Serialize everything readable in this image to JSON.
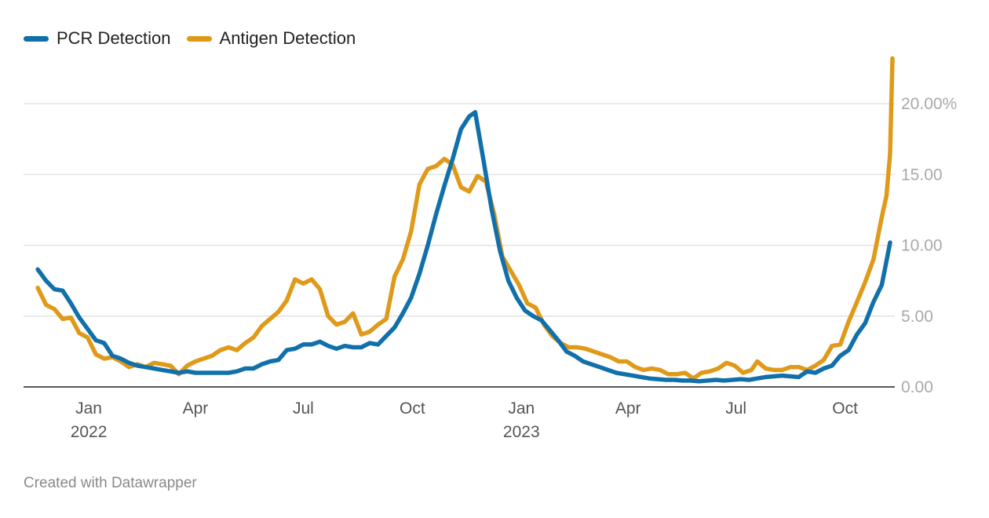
{
  "chart_data": {
    "type": "line",
    "title": "",
    "xlabel": "",
    "ylabel": "",
    "ylim": [
      0,
      24
    ],
    "y_ticks": [
      {
        "value": 0,
        "label": "0.00"
      },
      {
        "value": 5,
        "label": "5.00"
      },
      {
        "value": 10,
        "label": "10.00"
      },
      {
        "value": 15,
        "label": "15.00"
      },
      {
        "value": 20,
        "label": "20.00%"
      }
    ],
    "x_range": [
      "2021-11-07",
      "2023-11-12"
    ],
    "x_ticks": [
      {
        "date": "2022-01-01",
        "label": "Jan",
        "year": "2022"
      },
      {
        "date": "2022-04-01",
        "label": "Apr",
        "year": ""
      },
      {
        "date": "2022-07-01",
        "label": "Jul",
        "year": ""
      },
      {
        "date": "2022-10-01",
        "label": "Oct",
        "year": ""
      },
      {
        "date": "2023-01-01",
        "label": "Jan",
        "year": "2023"
      },
      {
        "date": "2023-04-01",
        "label": "Apr",
        "year": ""
      },
      {
        "date": "2023-07-01",
        "label": "Jul",
        "year": ""
      },
      {
        "date": "2023-10-01",
        "label": "Oct",
        "year": ""
      }
    ],
    "series": [
      {
        "name": "PCR Detection",
        "color": "#1170aa",
        "points": [
          [
            "2021-11-19",
            8.3
          ],
          [
            "2021-11-26",
            7.5
          ],
          [
            "2021-12-03",
            6.9
          ],
          [
            "2021-12-10",
            6.8
          ],
          [
            "2021-12-17",
            5.9
          ],
          [
            "2021-12-24",
            4.9
          ],
          [
            "2021-12-31",
            4.1
          ],
          [
            "2022-01-07",
            3.3
          ],
          [
            "2022-01-14",
            3.1
          ],
          [
            "2022-01-21",
            2.2
          ],
          [
            "2022-01-28",
            2.0
          ],
          [
            "2022-02-04",
            1.7
          ],
          [
            "2022-02-11",
            1.5
          ],
          [
            "2022-02-18",
            1.4
          ],
          [
            "2022-02-25",
            1.3
          ],
          [
            "2022-03-04",
            1.2
          ],
          [
            "2022-03-11",
            1.1
          ],
          [
            "2022-03-18",
            1.0
          ],
          [
            "2022-03-25",
            1.1
          ],
          [
            "2022-04-01",
            1.0
          ],
          [
            "2022-04-08",
            1.0
          ],
          [
            "2022-04-15",
            1.0
          ],
          [
            "2022-04-22",
            1.0
          ],
          [
            "2022-04-29",
            1.0
          ],
          [
            "2022-05-06",
            1.1
          ],
          [
            "2022-05-13",
            1.3
          ],
          [
            "2022-05-20",
            1.3
          ],
          [
            "2022-05-27",
            1.6
          ],
          [
            "2022-06-03",
            1.8
          ],
          [
            "2022-06-10",
            1.9
          ],
          [
            "2022-06-17",
            2.6
          ],
          [
            "2022-06-24",
            2.7
          ],
          [
            "2022-07-01",
            3.0
          ],
          [
            "2022-07-08",
            3.0
          ],
          [
            "2022-07-15",
            3.2
          ],
          [
            "2022-07-22",
            2.9
          ],
          [
            "2022-07-29",
            2.7
          ],
          [
            "2022-08-05",
            2.9
          ],
          [
            "2022-08-12",
            2.8
          ],
          [
            "2022-08-19",
            2.8
          ],
          [
            "2022-08-26",
            3.1
          ],
          [
            "2022-09-02",
            3.0
          ],
          [
            "2022-09-09",
            3.6
          ],
          [
            "2022-09-16",
            4.2
          ],
          [
            "2022-09-23",
            5.2
          ],
          [
            "2022-09-30",
            6.3
          ],
          [
            "2022-10-07",
            8.0
          ],
          [
            "2022-10-14",
            10.0
          ],
          [
            "2022-10-21",
            12.2
          ],
          [
            "2022-10-28",
            14.2
          ],
          [
            "2022-11-04",
            16.1
          ],
          [
            "2022-11-11",
            18.2
          ],
          [
            "2022-11-18",
            19.1
          ],
          [
            "2022-11-23",
            19.4
          ],
          [
            "2022-11-30",
            16.0
          ],
          [
            "2022-12-07",
            12.5
          ],
          [
            "2022-12-14",
            9.6
          ],
          [
            "2022-12-21",
            7.5
          ],
          [
            "2022-12-28",
            6.3
          ],
          [
            "2023-01-04",
            5.4
          ],
          [
            "2023-01-11",
            5.0
          ],
          [
            "2023-01-18",
            4.7
          ],
          [
            "2023-01-25",
            4.0
          ],
          [
            "2023-02-01",
            3.3
          ],
          [
            "2023-02-08",
            2.5
          ],
          [
            "2023-02-15",
            2.2
          ],
          [
            "2023-02-22",
            1.8
          ],
          [
            "2023-03-01",
            1.6
          ],
          [
            "2023-03-08",
            1.4
          ],
          [
            "2023-03-15",
            1.2
          ],
          [
            "2023-03-22",
            1.0
          ],
          [
            "2023-03-29",
            0.9
          ],
          [
            "2023-04-05",
            0.8
          ],
          [
            "2023-04-12",
            0.7
          ],
          [
            "2023-04-19",
            0.6
          ],
          [
            "2023-04-26",
            0.55
          ],
          [
            "2023-05-03",
            0.5
          ],
          [
            "2023-05-10",
            0.5
          ],
          [
            "2023-05-17",
            0.45
          ],
          [
            "2023-05-24",
            0.45
          ],
          [
            "2023-05-31",
            0.4
          ],
          [
            "2023-06-07",
            0.45
          ],
          [
            "2023-06-14",
            0.5
          ],
          [
            "2023-06-21",
            0.45
          ],
          [
            "2023-06-28",
            0.5
          ],
          [
            "2023-07-05",
            0.55
          ],
          [
            "2023-07-12",
            0.5
          ],
          [
            "2023-07-19",
            0.6
          ],
          [
            "2023-07-26",
            0.7
          ],
          [
            "2023-08-02",
            0.75
          ],
          [
            "2023-08-09",
            0.8
          ],
          [
            "2023-08-16",
            0.75
          ],
          [
            "2023-08-23",
            0.7
          ],
          [
            "2023-08-30",
            1.1
          ],
          [
            "2023-09-06",
            1.0
          ],
          [
            "2023-09-13",
            1.3
          ],
          [
            "2023-09-20",
            1.5
          ],
          [
            "2023-09-27",
            2.2
          ],
          [
            "2023-10-04",
            2.6
          ],
          [
            "2023-10-11",
            3.7
          ],
          [
            "2023-10-18",
            4.5
          ],
          [
            "2023-10-25",
            6.0
          ],
          [
            "2023-11-01",
            7.2
          ],
          [
            "2023-11-08",
            10.2
          ]
        ]
      },
      {
        "name": "Antigen Detection",
        "color": "#e09a1a",
        "points": [
          [
            "2021-11-19",
            7.0
          ],
          [
            "2021-11-26",
            5.8
          ],
          [
            "2021-12-03",
            5.5
          ],
          [
            "2021-12-10",
            4.8
          ],
          [
            "2021-12-17",
            4.9
          ],
          [
            "2021-12-24",
            3.8
          ],
          [
            "2021-12-31",
            3.5
          ],
          [
            "2022-01-07",
            2.3
          ],
          [
            "2022-01-14",
            2.0
          ],
          [
            "2022-01-21",
            2.1
          ],
          [
            "2022-01-28",
            1.8
          ],
          [
            "2022-02-04",
            1.4
          ],
          [
            "2022-02-11",
            1.6
          ],
          [
            "2022-02-18",
            1.4
          ],
          [
            "2022-02-25",
            1.7
          ],
          [
            "2022-03-04",
            1.6
          ],
          [
            "2022-03-11",
            1.5
          ],
          [
            "2022-03-18",
            0.9
          ],
          [
            "2022-03-25",
            1.5
          ],
          [
            "2022-04-01",
            1.8
          ],
          [
            "2022-04-08",
            2.0
          ],
          [
            "2022-04-15",
            2.2
          ],
          [
            "2022-04-22",
            2.6
          ],
          [
            "2022-04-29",
            2.8
          ],
          [
            "2022-05-06",
            2.6
          ],
          [
            "2022-05-13",
            3.1
          ],
          [
            "2022-05-20",
            3.5
          ],
          [
            "2022-05-27",
            4.3
          ],
          [
            "2022-06-03",
            4.8
          ],
          [
            "2022-06-10",
            5.3
          ],
          [
            "2022-06-17",
            6.1
          ],
          [
            "2022-06-24",
            7.6
          ],
          [
            "2022-07-01",
            7.3
          ],
          [
            "2022-07-08",
            7.6
          ],
          [
            "2022-07-15",
            6.9
          ],
          [
            "2022-07-22",
            5.0
          ],
          [
            "2022-07-29",
            4.4
          ],
          [
            "2022-08-05",
            4.6
          ],
          [
            "2022-08-12",
            5.2
          ],
          [
            "2022-08-19",
            3.7
          ],
          [
            "2022-08-26",
            3.9
          ],
          [
            "2022-09-02",
            4.4
          ],
          [
            "2022-09-09",
            4.8
          ],
          [
            "2022-09-16",
            7.8
          ],
          [
            "2022-09-23",
            9.0
          ],
          [
            "2022-09-30",
            11.0
          ],
          [
            "2022-10-07",
            14.3
          ],
          [
            "2022-10-14",
            15.4
          ],
          [
            "2022-10-21",
            15.6
          ],
          [
            "2022-10-28",
            16.1
          ],
          [
            "2022-11-04",
            15.7
          ],
          [
            "2022-11-11",
            14.1
          ],
          [
            "2022-11-18",
            13.8
          ],
          [
            "2022-11-25",
            14.9
          ],
          [
            "2022-12-02",
            14.5
          ],
          [
            "2022-12-09",
            12.2
          ],
          [
            "2022-12-16",
            9.2
          ],
          [
            "2022-12-23",
            8.2
          ],
          [
            "2022-12-30",
            7.2
          ],
          [
            "2023-01-06",
            5.9
          ],
          [
            "2023-01-13",
            5.6
          ],
          [
            "2023-01-20",
            4.4
          ],
          [
            "2023-01-27",
            3.6
          ],
          [
            "2023-02-03",
            3.1
          ],
          [
            "2023-02-10",
            2.8
          ],
          [
            "2023-02-17",
            2.8
          ],
          [
            "2023-02-24",
            2.7
          ],
          [
            "2023-03-03",
            2.5
          ],
          [
            "2023-03-10",
            2.3
          ],
          [
            "2023-03-17",
            2.1
          ],
          [
            "2023-03-24",
            1.8
          ],
          [
            "2023-03-31",
            1.8
          ],
          [
            "2023-04-07",
            1.4
          ],
          [
            "2023-04-14",
            1.2
          ],
          [
            "2023-04-21",
            1.3
          ],
          [
            "2023-04-28",
            1.2
          ],
          [
            "2023-05-05",
            0.9
          ],
          [
            "2023-05-12",
            0.9
          ],
          [
            "2023-05-19",
            1.0
          ],
          [
            "2023-05-26",
            0.6
          ],
          [
            "2023-06-02",
            1.0
          ],
          [
            "2023-06-09",
            1.1
          ],
          [
            "2023-06-16",
            1.3
          ],
          [
            "2023-06-23",
            1.7
          ],
          [
            "2023-06-30",
            1.5
          ],
          [
            "2023-07-07",
            1.0
          ],
          [
            "2023-07-14",
            1.2
          ],
          [
            "2023-07-19",
            1.8
          ],
          [
            "2023-07-26",
            1.3
          ],
          [
            "2023-08-02",
            1.2
          ],
          [
            "2023-08-09",
            1.2
          ],
          [
            "2023-08-16",
            1.4
          ],
          [
            "2023-08-23",
            1.4
          ],
          [
            "2023-08-30",
            1.2
          ],
          [
            "2023-09-06",
            1.5
          ],
          [
            "2023-09-13",
            1.9
          ],
          [
            "2023-09-20",
            2.9
          ],
          [
            "2023-09-27",
            3.0
          ],
          [
            "2023-10-04",
            4.6
          ],
          [
            "2023-10-11",
            6.0
          ],
          [
            "2023-10-18",
            7.4
          ],
          [
            "2023-10-25",
            9.0
          ],
          [
            "2023-11-01",
            12.0
          ],
          [
            "2023-11-05",
            13.5
          ],
          [
            "2023-11-08",
            16.5
          ],
          [
            "2023-11-10",
            23.2
          ]
        ]
      }
    ]
  },
  "footer": {
    "credit": "Created with Datawrapper"
  }
}
